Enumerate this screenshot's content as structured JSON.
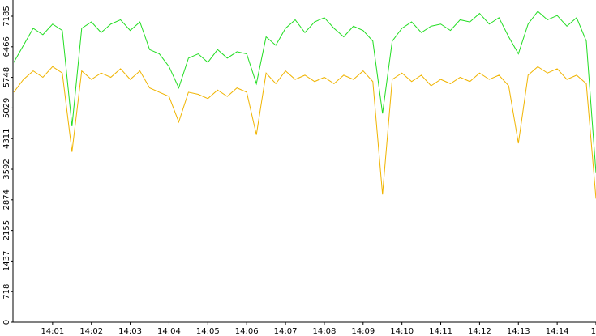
{
  "chart_data": {
    "type": "line",
    "x": [
      0,
      0.25,
      0.5,
      0.75,
      1,
      1.25,
      1.5,
      1.75,
      2,
      2.25,
      2.5,
      2.75,
      3,
      3.25,
      3.5,
      3.75,
      4,
      4.25,
      4.5,
      4.75,
      5,
      5.25,
      5.5,
      5.75,
      6,
      6.25,
      6.5,
      6.75,
      7,
      7.25,
      7.5,
      7.75,
      8,
      8.25,
      8.5,
      8.75,
      9,
      9.25,
      9.5,
      9.75,
      10,
      10.25,
      10.5,
      10.75,
      11,
      11.25,
      11.5,
      11.75,
      12,
      12.25,
      12.5,
      12.75,
      13,
      13.25,
      13.5,
      13.75,
      14,
      14.25,
      14.5,
      14.75,
      15
    ],
    "series": [
      {
        "color": "#22dd22",
        "values": [
          6100,
          6500,
          6900,
          6750,
          7000,
          6850,
          4600,
          6900,
          7050,
          6800,
          7000,
          7100,
          6850,
          7050,
          6400,
          6300,
          6000,
          5500,
          6200,
          6300,
          6100,
          6400,
          6200,
          6350,
          6300,
          5600,
          6700,
          6500,
          6900,
          7100,
          6800,
          7050,
          7150,
          6900,
          6700,
          6950,
          6850,
          6600,
          4900,
          6600,
          6900,
          7050,
          6800,
          6950,
          7000,
          6850,
          7100,
          7050,
          7250,
          7000,
          7150,
          6700,
          6300,
          7000,
          7300,
          7100,
          7200,
          6950,
          7150,
          6600,
          3500
        ]
      },
      {
        "color": "#f0b400",
        "values": [
          5400,
          5700,
          5900,
          5750,
          6000,
          5850,
          4000,
          5900,
          5700,
          5850,
          5750,
          5950,
          5700,
          5900,
          5500,
          5400,
          5300,
          4700,
          5400,
          5350,
          5250,
          5450,
          5300,
          5500,
          5400,
          4400,
          5850,
          5600,
          5900,
          5700,
          5800,
          5650,
          5750,
          5600,
          5800,
          5700,
          5900,
          5650,
          3000,
          5700,
          5850,
          5650,
          5800,
          5550,
          5700,
          5600,
          5750,
          5650,
          5850,
          5700,
          5800,
          5550,
          4200,
          5800,
          6000,
          5850,
          5950,
          5700,
          5800,
          5600,
          2900
        ]
      }
    ],
    "xlim": [
      0,
      15
    ],
    "xticks": [
      {
        "value": 1,
        "label": "14:01"
      },
      {
        "value": 2,
        "label": "14:02"
      },
      {
        "value": 3,
        "label": "14:03"
      },
      {
        "value": 4,
        "label": "14:04"
      },
      {
        "value": 5,
        "label": "14:05"
      },
      {
        "value": 6,
        "label": "14:06"
      },
      {
        "value": 7,
        "label": "14:07"
      },
      {
        "value": 8,
        "label": "14:08"
      },
      {
        "value": 9,
        "label": "14:09"
      },
      {
        "value": 10,
        "label": "14:10"
      },
      {
        "value": 11,
        "label": "14:11"
      },
      {
        "value": 12,
        "label": "14:12"
      },
      {
        "value": 13,
        "label": "14:13"
      },
      {
        "value": 14,
        "label": "14:14"
      },
      {
        "value": 15,
        "label": "14"
      }
    ],
    "ylim": [
      0,
      7565
    ],
    "yticks": [
      0,
      718,
      1437,
      2155,
      2874,
      3592,
      4311,
      5029,
      5748,
      6466,
      7185
    ]
  }
}
